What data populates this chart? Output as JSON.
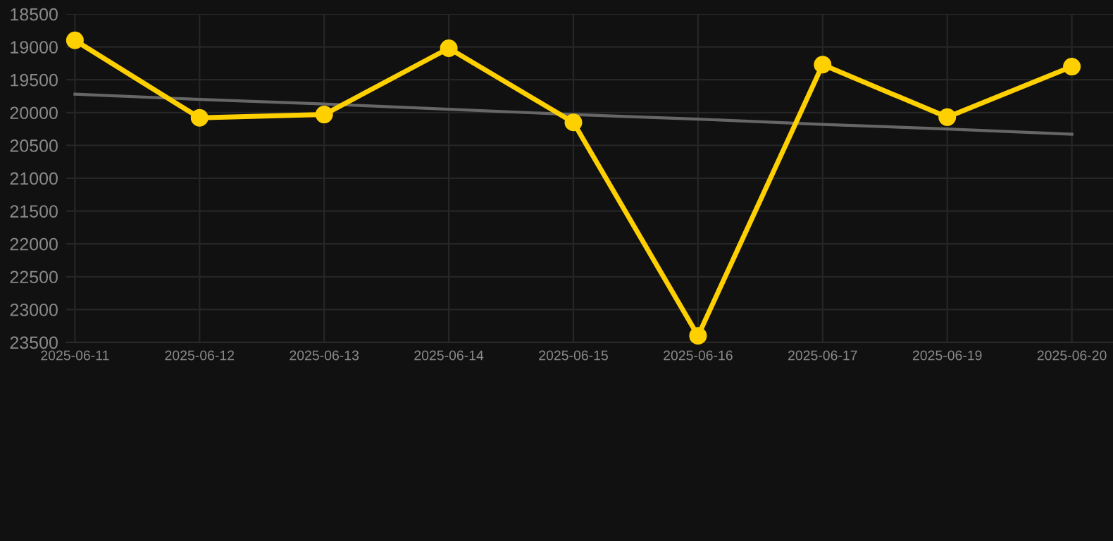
{
  "chart_data": {
    "type": "line",
    "categories": [
      "2025-06-11",
      "2025-06-12",
      "2025-06-13",
      "2025-06-14",
      "2025-06-15",
      "2025-06-16",
      "2025-06-17",
      "2025-06-19",
      "2025-06-20"
    ],
    "series": [
      {
        "color": "#ffd000",
        "marker": "circle",
        "values": [
          18900,
          20080,
          20030,
          19020,
          20150,
          23400,
          19270,
          20070,
          19300
        ]
      },
      {
        "type": "line",
        "color": "#666666",
        "marker": "none",
        "values": [
          19720,
          19800,
          19870,
          19950,
          20030,
          20100,
          20180,
          20250,
          20330
        ]
      }
    ],
    "ylim": [
      23500,
      18500
    ],
    "yticks": [
      18500,
      19000,
      19500,
      20000,
      20500,
      21000,
      21500,
      22000,
      22500,
      23000,
      23500
    ],
    "grid": true,
    "line_style": "solid"
  }
}
